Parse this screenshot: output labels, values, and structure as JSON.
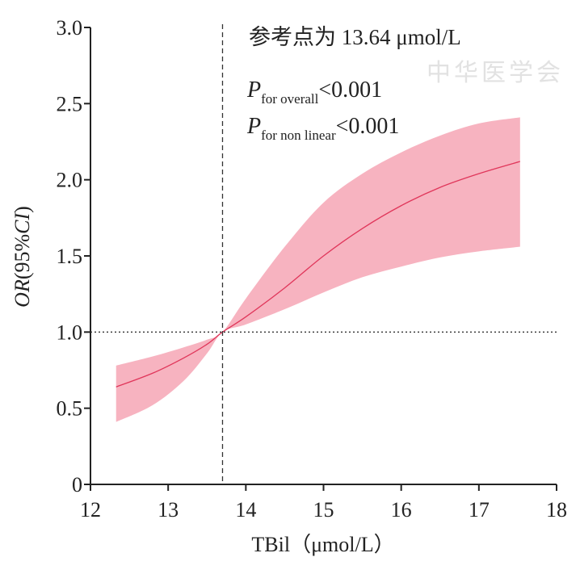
{
  "chart_data": {
    "type": "line",
    "title": "",
    "xlabel": "TBil（μmol/L）",
    "ylabel_parts": [
      "OR",
      "(95%",
      "CI",
      ")"
    ],
    "xlim": [
      12,
      18
    ],
    "ylim": [
      0,
      3.0
    ],
    "x_ticks": [
      "12",
      "13",
      "14",
      "15",
      "16",
      "17",
      "18"
    ],
    "y_ticks": [
      "0",
      "0.5",
      "1.0",
      "1.5",
      "2.0",
      "2.5",
      "3.0"
    ],
    "grid": false,
    "reference_vline_x": 13.7,
    "reference_hline_y": 1.0,
    "annotations": {
      "reference": "参考点为 13.64 μmol/L",
      "p_overall": {
        "p": "P",
        "sub": "for overall",
        "value": "<0.001"
      },
      "p_nonlinear": {
        "p": "P",
        "sub": "for non linear",
        "value": "<0.001"
      }
    },
    "series": [
      {
        "name": "OR",
        "color": "#e0365a",
        "band_color": "#f7b3c0",
        "x": [
          12.33,
          12.8,
          13.2,
          13.5,
          13.7,
          14.0,
          14.5,
          15.0,
          15.5,
          16.0,
          16.5,
          17.0,
          17.53
        ],
        "y": [
          0.64,
          0.73,
          0.83,
          0.92,
          1.0,
          1.1,
          1.29,
          1.5,
          1.68,
          1.83,
          1.95,
          2.04,
          2.12
        ],
        "upper": [
          0.78,
          0.84,
          0.9,
          0.95,
          1.0,
          1.22,
          1.56,
          1.85,
          2.04,
          2.18,
          2.29,
          2.37,
          2.41
        ],
        "lower": [
          0.41,
          0.52,
          0.68,
          0.86,
          1.0,
          1.05,
          1.15,
          1.26,
          1.36,
          1.43,
          1.49,
          1.53,
          1.56
        ]
      }
    ],
    "watermark": "中华医学会"
  }
}
